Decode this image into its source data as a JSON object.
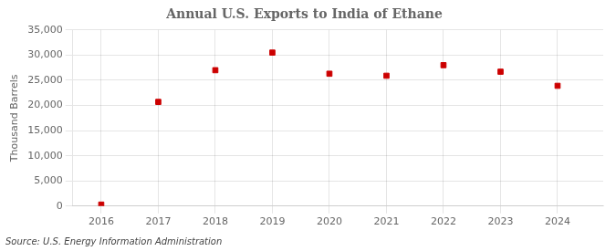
{
  "chart_data": {
    "type": "scatter",
    "title": "Annual U.S. Exports to India of Ethane",
    "ylabel": "Thousand Barrels",
    "annotations": [
      "Source: U.S. Energy Information Administration"
    ],
    "x": [
      2016,
      2017,
      2018,
      2019,
      2020,
      2021,
      2022,
      2023,
      2024
    ],
    "values": [
      300,
      20700,
      27000,
      30500,
      26300,
      25900,
      28000,
      26700,
      23900
    ],
    "color": "#cc0000",
    "marker": "square",
    "xlim": [
      2015.5,
      2024.8
    ],
    "xticks": [
      2016,
      2017,
      2018,
      2019,
      2020,
      2021,
      2022,
      2023,
      2024
    ],
    "ylim": [
      0,
      35000
    ],
    "yticks": [
      0,
      {
        "value": 5000,
        "label": "5,000"
      },
      {
        "value": 10000,
        "label": "10,000"
      },
      {
        "value": 15000,
        "label": "15,000"
      },
      {
        "value": 20000,
        "label": "20,000"
      },
      {
        "value": 25000,
        "label": "25,000"
      },
      {
        "value": 30000,
        "label": "30,000"
      },
      {
        "value": 35000,
        "label": "35,000"
      }
    ],
    "grid": true
  }
}
